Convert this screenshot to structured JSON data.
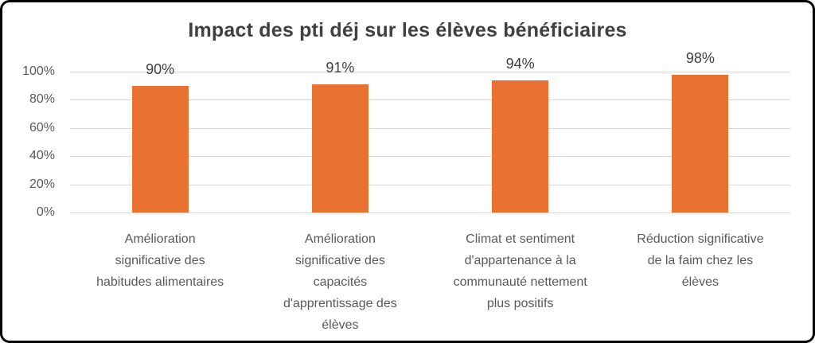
{
  "window": {
    "background_color": "#ffffff",
    "border_color": "#000000"
  },
  "chart_data": {
    "type": "bar",
    "title": "Impact des pti déj sur les élèves bénéficiaires",
    "categories": [
      "Amélioration significative des habitudes alimentaires",
      "Amélioration significative des capacités d'apprentissage des élèves",
      "Climat et sentiment d'appartenance à la communauté nettement plus positifs",
      "Réduction significative de la faim chez les élèves"
    ],
    "category_lines": [
      [
        "Amélioration",
        "significative des",
        "habitudes alimentaires"
      ],
      [
        "Amélioration",
        "significative des",
        "capacités",
        "d'apprentissage des",
        "élèves"
      ],
      [
        "Climat et sentiment",
        "d'appartenance à la",
        "communauté nettement",
        "plus positifs"
      ],
      [
        "Réduction significative",
        "de la faim chez les",
        "élèves"
      ]
    ],
    "values": [
      90,
      91,
      94,
      98
    ],
    "data_labels": [
      "90%",
      "91%",
      "94%",
      "98%"
    ],
    "ylabel": "",
    "xlabel": "",
    "ylim": [
      0,
      100
    ],
    "ytick_step": 20,
    "ytick_labels": [
      "0%",
      "20%",
      "40%",
      "60%",
      "80%",
      "100%"
    ],
    "grid": true,
    "legend_position": "none",
    "bar_color": "#E97132",
    "gridline_color": "#D9D9D9",
    "title_color": "#404040",
    "axis_label_color": "#595959",
    "data_label_color": "#404040"
  }
}
